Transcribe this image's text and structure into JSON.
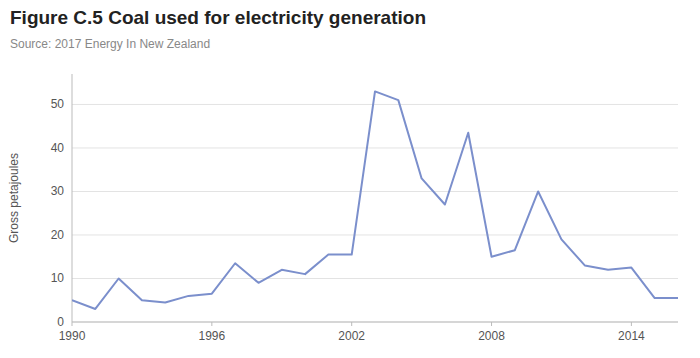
{
  "chart_data": {
    "type": "line",
    "title": "Figure C.5 Coal used for electricity generation",
    "subtitle": "Source: 2017 Energy In New Zealand",
    "ylabel": "Gross petajoules",
    "color": "#7b8fcc",
    "x": [
      1990,
      1991,
      1992,
      1993,
      1994,
      1995,
      1996,
      1997,
      1998,
      1999,
      2000,
      2001,
      2002,
      2003,
      2004,
      2005,
      2006,
      2007,
      2008,
      2009,
      2010,
      2011,
      2012,
      2013,
      2014,
      2015,
      2016
    ],
    "values": [
      5.0,
      3.0,
      10.0,
      5.0,
      4.5,
      6.0,
      6.5,
      13.5,
      9.0,
      12.0,
      11.0,
      15.5,
      15.5,
      53.0,
      51.0,
      33.0,
      27.0,
      43.5,
      15.0,
      16.5,
      30.0,
      19.0,
      13.0,
      12.0,
      12.5,
      5.5,
      5.5
    ],
    "xlim": [
      1990,
      2016
    ],
    "ylim": [
      0,
      57
    ],
    "xticks": [
      1990,
      1996,
      2002,
      2008,
      2014
    ],
    "yticks": [
      0,
      10,
      20,
      30,
      40,
      50
    ],
    "grid": true
  }
}
